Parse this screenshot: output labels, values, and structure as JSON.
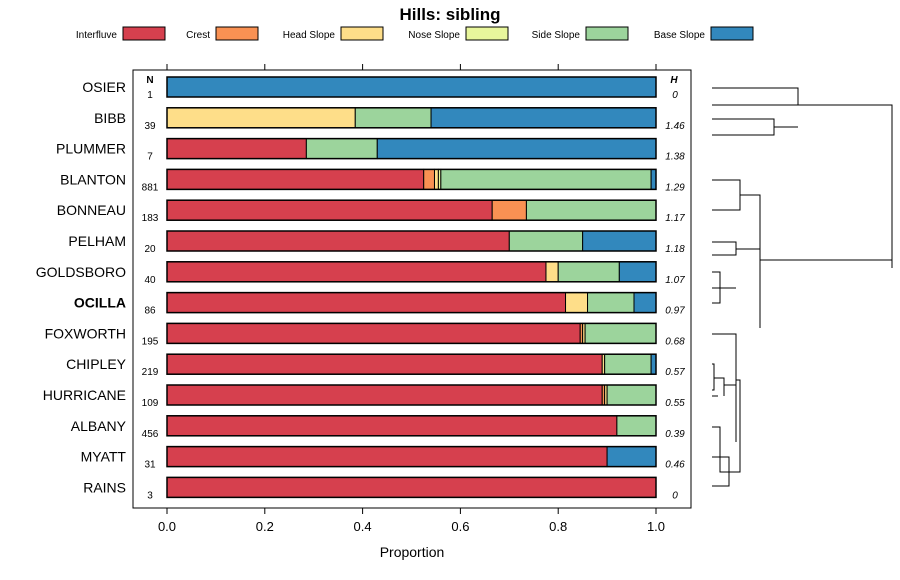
{
  "chart_data": {
    "type": "bar",
    "subtype": "stacked-horizontal-proportion",
    "title": "Hills: sibling",
    "xlabel": "Proportion",
    "xlim": [
      0,
      1
    ],
    "xticks": [
      "0.0",
      "0.2",
      "0.4",
      "0.6",
      "0.8",
      "1.0"
    ],
    "n_header": "N",
    "h_header": "H",
    "series": [
      {
        "name": "Interfluve",
        "color": "#d6404e"
      },
      {
        "name": "Crest",
        "color": "#f99153"
      },
      {
        "name": "Head Slope",
        "color": "#fede89"
      },
      {
        "name": "Nose Slope",
        "color": "#e8f69c"
      },
      {
        "name": "Side Slope",
        "color": "#9cd49c"
      },
      {
        "name": "Base Slope",
        "color": "#3288bd"
      }
    ],
    "categories": [
      {
        "name": "OSIER",
        "n": "1",
        "h": "0",
        "bold": false,
        "values": [
          0,
          0,
          0,
          0,
          0,
          1.0
        ]
      },
      {
        "name": "BIBB",
        "n": "39",
        "h": "1.46",
        "bold": false,
        "values": [
          0,
          0,
          0.385,
          0,
          0.155,
          0.46
        ]
      },
      {
        "name": "PLUMMER",
        "n": "7",
        "h": "1.38",
        "bold": false,
        "values": [
          0.285,
          0,
          0,
          0,
          0.145,
          0.57
        ]
      },
      {
        "name": "BLANTON",
        "n": "881",
        "h": "1.29",
        "bold": false,
        "values": [
          0.525,
          0.022,
          0.008,
          0.005,
          0.43,
          0.01
        ]
      },
      {
        "name": "BONNEAU",
        "n": "183",
        "h": "1.17",
        "bold": false,
        "values": [
          0.665,
          0.07,
          0,
          0,
          0.265,
          0
        ]
      },
      {
        "name": "PELHAM",
        "n": "20",
        "h": "1.18",
        "bold": false,
        "values": [
          0.7,
          0,
          0,
          0,
          0.15,
          0.15
        ]
      },
      {
        "name": "GOLDSBORO",
        "n": "40",
        "h": "1.07",
        "bold": false,
        "values": [
          0.775,
          0,
          0.025,
          0,
          0.125,
          0.075
        ]
      },
      {
        "name": "OCILLA",
        "n": "86",
        "h": "0.97",
        "bold": true,
        "values": [
          0.815,
          0,
          0.045,
          0,
          0.095,
          0.045
        ]
      },
      {
        "name": "FOXWORTH",
        "n": "195",
        "h": "0.68",
        "bold": false,
        "values": [
          0.845,
          0.005,
          0.005,
          0,
          0.145,
          0
        ]
      },
      {
        "name": "CHIPLEY",
        "n": "219",
        "h": "0.57",
        "bold": false,
        "values": [
          0.89,
          0,
          0.005,
          0,
          0.095,
          0.01
        ]
      },
      {
        "name": "HURRICANE",
        "n": "109",
        "h": "0.55",
        "bold": false,
        "values": [
          0.89,
          0.005,
          0.005,
          0,
          0.1,
          0
        ]
      },
      {
        "name": "ALBANY",
        "n": "456",
        "h": "0.39",
        "bold": false,
        "values": [
          0.92,
          0,
          0,
          0,
          0.08,
          0
        ]
      },
      {
        "name": "MYATT",
        "n": "31",
        "h": "0.46",
        "bold": false,
        "values": [
          0.9,
          0,
          0,
          0,
          0,
          0.1
        ]
      },
      {
        "name": "RAINS",
        "n": "3",
        "h": "0",
        "bold": false,
        "values": [
          1.0,
          0,
          0,
          0,
          0,
          0
        ]
      }
    ]
  }
}
